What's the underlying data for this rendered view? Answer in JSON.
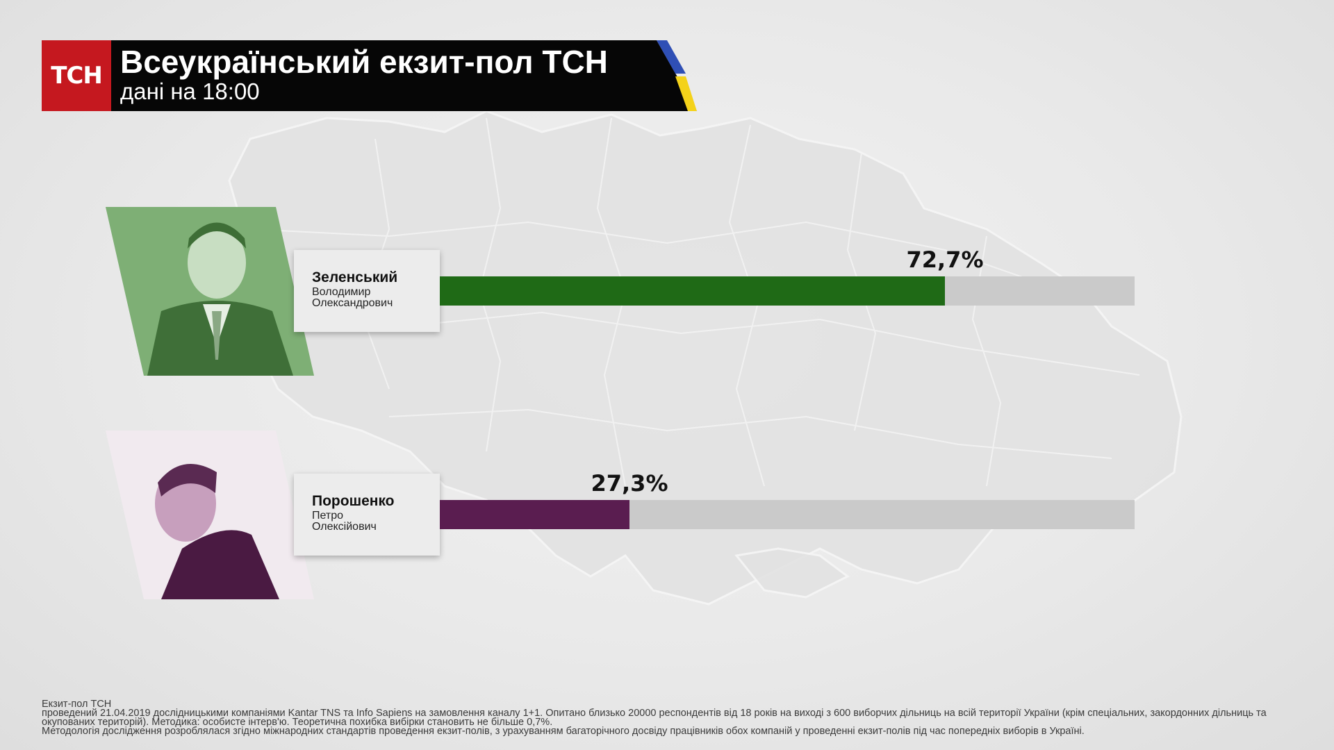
{
  "header": {
    "logo": "ТСН",
    "title": "Всеукраїнський екзит-пол ТСН",
    "subtitle": "дані на 18:00",
    "flag_colors": [
      "#2f4fb5",
      "#f4d21a"
    ],
    "logo_color": "#c5181f"
  },
  "chart_data": {
    "type": "bar",
    "categories": [
      "Зеленський",
      "Порошенко"
    ],
    "values": [
      72.7,
      27.3
    ],
    "value_labels": [
      "72,7%",
      "27,3%"
    ],
    "xlim": [
      0,
      100
    ],
    "colors": [
      "#1f6a16",
      "#5a1d50"
    ],
    "track_color": "#cacaca"
  },
  "candidates": [
    {
      "surname": "Зеленський",
      "given_name": "Володимир",
      "patronymic": "Олександрович",
      "value": 72.7,
      "value_label": "72,7%",
      "color": "#1f6a16",
      "photo_tint": "#4f8f47"
    },
    {
      "surname": "Порошенко",
      "given_name": "Петро",
      "patronymic": "Олексійович",
      "value": 27.3,
      "value_label": "27,3%",
      "color": "#5a1d50",
      "photo_tint": "#6b2a60"
    }
  ],
  "footnote": {
    "line1": "Екзит-пол ТСН",
    "line2": "проведений 21.04.2019 дослідницькими компаніями Kantar TNS та Info Sapiens на замовлення каналу 1+1. Опитано близько 20000 респондентів від 18 років на виході з 600 виборчих дільниць на всій території України (крім спеціальних, закордонних дільниць та окупованих територій). Методика: особисте інтерв'ю. Теоретична похибка вибірки становить не більше 0,7%.",
    "line3": "Методологія дослідження розроблялася згідно міжнародних стандартів проведення екзит-полів, з урахуванням багаторічного досвіду працівників обох компаній у проведенні екзит-полів під час попередніх виборів в Україні."
  }
}
